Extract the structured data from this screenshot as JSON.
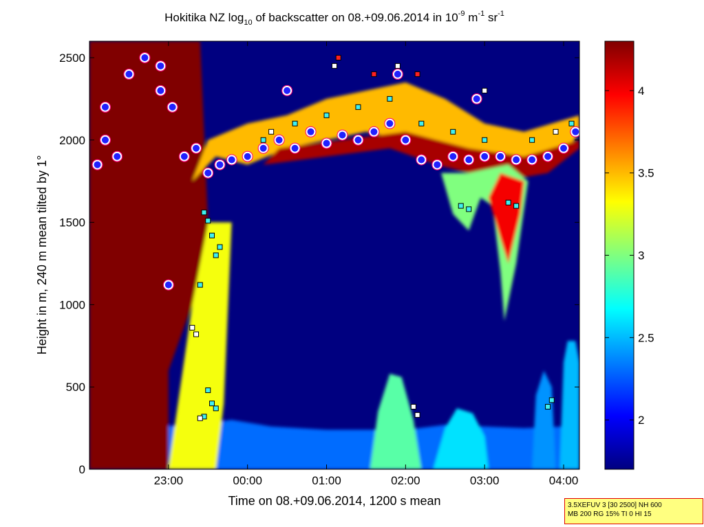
{
  "chart_data": {
    "type": "heatmap",
    "title_parts": [
      "Hokitika NZ log",
      "10",
      " of backscatter on 08.+09.06.2014 in 10",
      "-9",
      " m",
      "-1",
      " sr",
      "-1"
    ],
    "xlabel": "Time on 08.+09.06.2014, 1200 s mean",
    "ylabel": "Height in m, 240 m mean tilted by 1°",
    "x_ticks": [
      "23:00",
      "00:00",
      "01:00",
      "02:00",
      "03:00",
      "04:00"
    ],
    "x_tick_hours": [
      23,
      24,
      25,
      26,
      27,
      28
    ],
    "xlim_hours": [
      22.0,
      28.2
    ],
    "y_ticks": [
      0,
      500,
      1000,
      1500,
      2000,
      2500
    ],
    "ylim": [
      0,
      2600
    ],
    "colorbar": {
      "ticks": [
        "2",
        "2.5",
        "3",
        "3.5",
        "4"
      ],
      "tick_values": [
        2,
        2.5,
        3,
        3.5,
        4
      ],
      "clim": [
        1.7,
        4.3
      ],
      "colormap": "jet"
    },
    "background_value": 1.7,
    "layers": [
      {
        "name": "surface-layer",
        "points": [
          [
            22.0,
            0
          ],
          [
            22.3,
            280
          ],
          [
            22.8,
            260
          ],
          [
            23.3,
            270
          ],
          [
            23.8,
            300
          ],
          [
            24.3,
            260
          ],
          [
            25.0,
            240
          ],
          [
            25.5,
            240
          ],
          [
            26.0,
            240
          ],
          [
            26.5,
            270
          ],
          [
            27.0,
            260
          ],
          [
            27.5,
            250
          ],
          [
            28.0,
            260
          ],
          [
            28.2,
            270
          ],
          [
            28.2,
            0
          ]
        ],
        "value": 2.3
      },
      {
        "name": "fog-column",
        "points": [
          [
            22.0,
            0
          ],
          [
            22.0,
            2600
          ],
          [
            23.4,
            2600
          ],
          [
            23.5,
            1500
          ],
          [
            23.3,
            1000
          ],
          [
            23.0,
            600
          ],
          [
            23.0,
            0
          ]
        ],
        "value": 4.3
      },
      {
        "name": "fog-edge",
        "points": [
          [
            23.0,
            0
          ],
          [
            23.3,
            1000
          ],
          [
            23.5,
            1500
          ],
          [
            23.8,
            1500
          ],
          [
            23.7,
            400
          ],
          [
            23.6,
            0
          ]
        ],
        "value": 3.3
      },
      {
        "name": "cloud-band",
        "points": [
          [
            23.3,
            1750
          ],
          [
            23.6,
            1900
          ],
          [
            24.0,
            1850
          ],
          [
            24.5,
            1950
          ],
          [
            25.0,
            2000
          ],
          [
            25.5,
            2050
          ],
          [
            26.0,
            2000
          ],
          [
            26.5,
            1900
          ],
          [
            27.0,
            1850
          ],
          [
            27.5,
            1850
          ],
          [
            28.0,
            1900
          ],
          [
            28.2,
            2050
          ],
          [
            28.2,
            2150
          ],
          [
            27.5,
            2050
          ],
          [
            27.0,
            2100
          ],
          [
            26.5,
            2250
          ],
          [
            26.0,
            2350
          ],
          [
            25.5,
            2300
          ],
          [
            25.0,
            2250
          ],
          [
            24.5,
            2150
          ],
          [
            24.0,
            2100
          ],
          [
            23.5,
            2000
          ]
        ],
        "value": 3.5
      },
      {
        "name": "cloud-core",
        "points": [
          [
            24.2,
            1850
          ],
          [
            25.0,
            1900
          ],
          [
            25.8,
            1950
          ],
          [
            26.4,
            1850
          ],
          [
            27.2,
            1750
          ],
          [
            27.8,
            1800
          ],
          [
            28.2,
            1950
          ],
          [
            28.2,
            2000
          ],
          [
            27.5,
            1900
          ],
          [
            26.8,
            1950
          ],
          [
            26.0,
            2050
          ],
          [
            25.2,
            2000
          ],
          [
            24.4,
            1950
          ]
        ],
        "value": 4.2
      },
      {
        "name": "plume-0250",
        "points": [
          [
            26.45,
            1800
          ],
          [
            26.6,
            1550
          ],
          [
            26.8,
            1450
          ],
          [
            26.95,
            1650
          ],
          [
            27.1,
            1600
          ],
          [
            27.2,
            1200
          ],
          [
            27.25,
            900
          ],
          [
            27.4,
            1250
          ],
          [
            27.55,
            1750
          ],
          [
            27.3,
            1850
          ],
          [
            26.8,
            1800
          ]
        ],
        "value": 3.0
      },
      {
        "name": "plume-0250-core",
        "points": [
          [
            27.05,
            1650
          ],
          [
            27.2,
            1400
          ],
          [
            27.3,
            1250
          ],
          [
            27.45,
            1550
          ],
          [
            27.5,
            1750
          ],
          [
            27.2,
            1800
          ]
        ],
        "value": 4.0
      },
      {
        "name": "puff-0155",
        "points": [
          [
            25.55,
            0
          ],
          [
            25.65,
            350
          ],
          [
            25.8,
            580
          ],
          [
            25.95,
            560
          ],
          [
            26.1,
            300
          ],
          [
            26.2,
            0
          ]
        ],
        "value": 2.9
      },
      {
        "name": "puff-0235",
        "points": [
          [
            26.35,
            0
          ],
          [
            26.5,
            250
          ],
          [
            26.65,
            370
          ],
          [
            26.85,
            340
          ],
          [
            27.0,
            200
          ],
          [
            27.05,
            0
          ]
        ],
        "value": 2.6
      },
      {
        "name": "puff-0340",
        "points": [
          [
            27.6,
            0
          ],
          [
            27.65,
            450
          ],
          [
            27.75,
            600
          ],
          [
            27.85,
            500
          ],
          [
            27.9,
            0
          ]
        ],
        "value": 2.4
      },
      {
        "name": "puff-0400",
        "points": [
          [
            27.95,
            0
          ],
          [
            28.0,
            650
          ],
          [
            28.05,
            780
          ],
          [
            28.15,
            780
          ],
          [
            28.2,
            650
          ],
          [
            28.2,
            0
          ]
        ],
        "value": 2.5
      }
    ],
    "markers": {
      "cloud_base_circles": [
        [
          22.1,
          1850
        ],
        [
          22.2,
          2000
        ],
        [
          22.35,
          1900
        ],
        [
          22.5,
          2400
        ],
        [
          22.7,
          2500
        ],
        [
          22.9,
          2450
        ],
        [
          23.05,
          2200
        ],
        [
          23.2,
          1900
        ],
        [
          23.35,
          1950
        ],
        [
          23.5,
          1800
        ],
        [
          23.65,
          1850
        ],
        [
          23.8,
          1880
        ],
        [
          24.0,
          1900
        ],
        [
          24.2,
          1950
        ],
        [
          24.4,
          2000
        ],
        [
          24.6,
          1950
        ],
        [
          24.8,
          2050
        ],
        [
          25.0,
          1980
        ],
        [
          25.2,
          2030
        ],
        [
          25.4,
          2000
        ],
        [
          25.6,
          2050
        ],
        [
          25.8,
          2100
        ],
        [
          26.0,
          2000
        ],
        [
          26.2,
          1880
        ],
        [
          26.4,
          1850
        ],
        [
          26.6,
          1900
        ],
        [
          26.8,
          1880
        ],
        [
          27.0,
          1900
        ],
        [
          27.2,
          1900
        ],
        [
          27.4,
          1880
        ],
        [
          27.6,
          1880
        ],
        [
          27.8,
          1900
        ],
        [
          28.0,
          1950
        ],
        [
          28.15,
          2050
        ],
        [
          22.2,
          2200
        ],
        [
          22.9,
          2300
        ],
        [
          24.5,
          2300
        ],
        [
          25.9,
          2400
        ],
        [
          26.9,
          2250
        ],
        [
          23.0,
          1120
        ]
      ],
      "squares_cyan": [
        [
          23.45,
          1560
        ],
        [
          23.5,
          1510
        ],
        [
          23.55,
          1420
        ],
        [
          23.6,
          1300
        ],
        [
          23.65,
          1350
        ],
        [
          23.4,
          1120
        ],
        [
          23.5,
          480
        ],
        [
          23.55,
          400
        ],
        [
          23.45,
          320
        ],
        [
          23.6,
          370
        ],
        [
          26.7,
          1600
        ],
        [
          26.8,
          1580
        ],
        [
          27.3,
          1620
        ],
        [
          27.4,
          1600
        ],
        [
          27.8,
          380
        ],
        [
          27.85,
          420
        ],
        [
          24.2,
          2000
        ],
        [
          24.6,
          2100
        ],
        [
          25.0,
          2150
        ],
        [
          25.4,
          2200
        ],
        [
          25.8,
          2250
        ],
        [
          26.2,
          2100
        ],
        [
          26.6,
          2050
        ],
        [
          27.0,
          2000
        ],
        [
          27.6,
          2000
        ],
        [
          28.1,
          2100
        ]
      ],
      "squares_white": [
        [
          23.3,
          860
        ],
        [
          23.35,
          820
        ],
        [
          23.4,
          310
        ],
        [
          26.1,
          380
        ],
        [
          26.15,
          330
        ],
        [
          24.3,
          2050
        ],
        [
          25.1,
          2450
        ],
        [
          25.9,
          2450
        ],
        [
          27.0,
          2300
        ],
        [
          27.9,
          2050
        ]
      ],
      "squares_red": [
        [
          25.15,
          2500
        ],
        [
          25.6,
          2400
        ],
        [
          26.15,
          2400
        ]
      ]
    }
  },
  "annotation": {
    "line1": "3.5XEFUV 3 [30 2500] NH 600",
    "line2": "MB 200 RG 15% TI 0 HI 15"
  }
}
